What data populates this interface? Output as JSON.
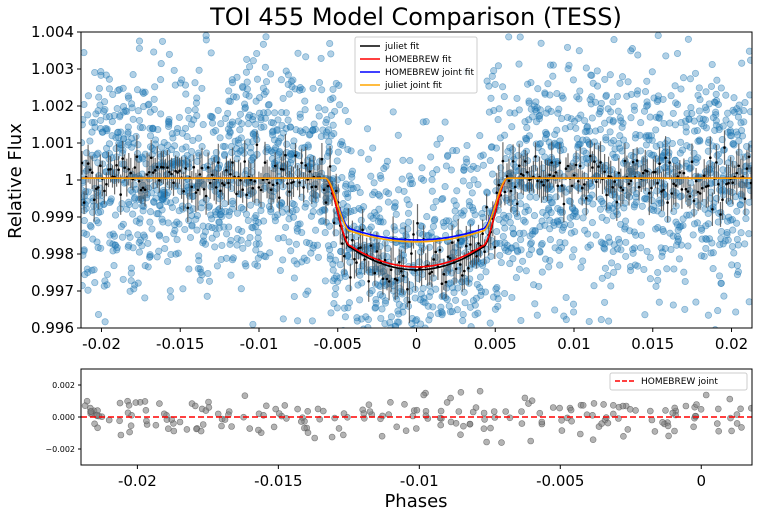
{
  "chart_data": [
    {
      "type": "scatter",
      "title": "TOI 455 Model Comparison (TESS)",
      "xlabel": "",
      "ylabel": "Relative Flux",
      "xlim": [
        -0.0213,
        0.0213
      ],
      "ylim": [
        0.996,
        1.004
      ],
      "x_ticks": [
        -0.02,
        -0.015,
        -0.01,
        -0.005,
        0,
        0.005,
        0.01,
        0.015,
        0.02
      ],
      "x_tick_labels": [
        "-0.02",
        "-0.015",
        "-0.01",
        "-0.005",
        "0",
        "0.005",
        "0.01",
        "0.015",
        "0.02"
      ],
      "y_ticks": [
        0.996,
        0.997,
        0.998,
        0.999,
        1.0,
        1.001,
        1.002,
        1.003,
        1.004
      ],
      "y_tick_labels": [
        "0.996",
        "0.997",
        "0.998",
        "0.999",
        "1",
        "1.001",
        "1.002",
        "1.003",
        "1.004"
      ],
      "scatter_color": "#1f77b4",
      "binned_color": "#000000",
      "transit_model": {
        "t_center": 0.0,
        "t_half_total": 0.0058,
        "t_half_flat": 0.0042
      },
      "series": [
        {
          "name": "juliet fit",
          "color": "#000000",
          "baseline": 1.00005,
          "depth_center": 0.99757,
          "depth_edge": 0.99818
        },
        {
          "name": "HOMEBREW fit",
          "color": "#ff0000",
          "baseline": 1.00005,
          "depth_center": 0.99765,
          "depth_edge": 0.99822
        },
        {
          "name": "HOMEBREW joint fit",
          "color": "#0000ff",
          "baseline": 1.00005,
          "depth_center": 0.99838,
          "depth_edge": 0.99868
        },
        {
          "name": "juliet joint fit",
          "color": "#ffa500",
          "baseline": 1.00005,
          "depth_center": 0.99833,
          "depth_edge": 0.99862
        }
      ],
      "legend_position": "top-center"
    },
    {
      "type": "scatter",
      "title": "",
      "xlabel": "Phases",
      "ylabel": "",
      "xlim": [
        -0.022,
        0.0018
      ],
      "ylim": [
        -0.003,
        0.003
      ],
      "x_ticks": [
        -0.02,
        -0.015,
        -0.01,
        -0.005,
        0
      ],
      "x_tick_labels": [
        "-0.02",
        "-0.015",
        "-0.01",
        "-0.005",
        "0"
      ],
      "y_ticks": [
        -0.002,
        0.0,
        0.002
      ],
      "y_tick_labels": [
        "−0.002",
        "0.000",
        "0.002"
      ],
      "point_color": "#808080",
      "series": [
        {
          "name": "HOMEBREW joint",
          "color": "#ff0000",
          "style": "dashed",
          "value": 0.0
        }
      ],
      "legend_position": "top-right"
    }
  ]
}
